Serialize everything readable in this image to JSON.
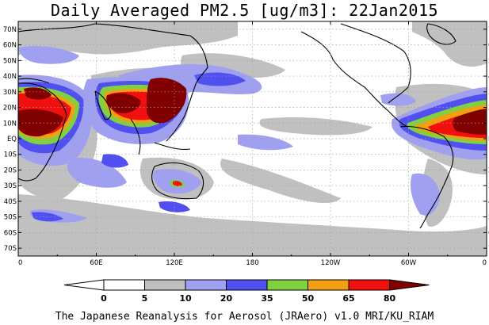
{
  "title": "Daily Averaged PM2.5 [ug/m3]: 22Jan2015",
  "footer": "The Japanese Reanalysis for Aerosol (JRAero) v1.0 MRI/KU_RIAM",
  "map": {
    "projection": "equirectangular",
    "lon_range": [
      0,
      360
    ],
    "lat_range": [
      -75,
      75
    ],
    "lat_labels": [
      "70N",
      "60N",
      "50N",
      "40N",
      "30N",
      "20N",
      "10N",
      "EQ",
      "10S",
      "20S",
      "30S",
      "40S",
      "50S",
      "60S",
      "70S"
    ],
    "lat_values": [
      70,
      60,
      50,
      40,
      30,
      20,
      10,
      0,
      -10,
      -20,
      -30,
      -40,
      -50,
      -60,
      -70
    ],
    "lon_labels": [
      "0",
      "60E",
      "120E",
      "180",
      "120W",
      "60W",
      "0"
    ],
    "lon_values": [
      0,
      60,
      120,
      180,
      240,
      300,
      360
    ],
    "grid": true
  },
  "colorbar": {
    "levels": [
      "0",
      "5",
      "10",
      "20",
      "35",
      "50",
      "65",
      "80"
    ],
    "colors": [
      "#ffffff",
      "#ffffff",
      "#c0c0c0",
      "#a0a0f0",
      "#5050f0",
      "#80d040",
      "#f0a010",
      "#f01010",
      "#800000"
    ]
  }
}
